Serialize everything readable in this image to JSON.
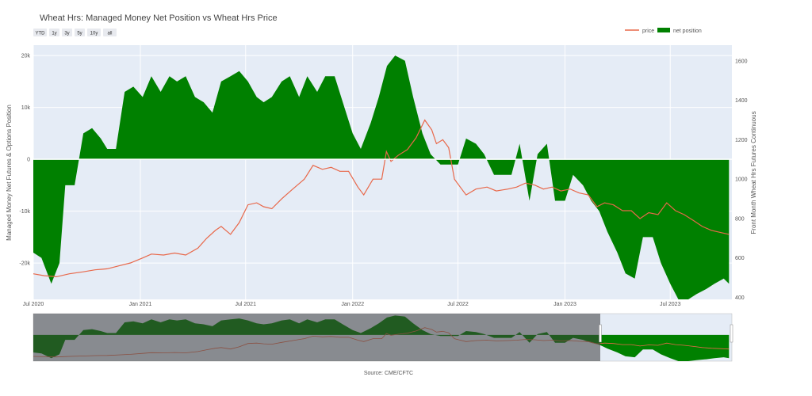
{
  "chart_data": {
    "type": "area",
    "title": "Wheat Hrs: Managed Money Net Position vs Wheat Hrs Price",
    "source": "Source: CME/CFTC",
    "range_buttons": [
      "YTD",
      "1y",
      "3y",
      "5y",
      "10y",
      "all"
    ],
    "xlim": [
      "2020-07-01",
      "2023-10-15"
    ],
    "x_ticks": [
      {
        "date": "2020-07-01",
        "label": "Jul 2020"
      },
      {
        "date": "2021-01-01",
        "label": "Jan 2021"
      },
      {
        "date": "2021-07-01",
        "label": "Jul 2021"
      },
      {
        "date": "2022-01-01",
        "label": "Jan 2022"
      },
      {
        "date": "2022-07-01",
        "label": "Jul 2022"
      },
      {
        "date": "2023-01-01",
        "label": "Jan 2023"
      },
      {
        "date": "2023-07-01",
        "label": "Jul 2023"
      }
    ],
    "y_left": {
      "title": "Managed Money Net Futures & Options Position",
      "range": [
        -27000,
        22000
      ],
      "ticks": [
        20000,
        10000,
        0,
        -10000,
        -20000
      ],
      "tick_labels": [
        "20k",
        "10k",
        "0",
        "-10k",
        "-20k"
      ]
    },
    "y_right": {
      "title": "Front Month Wheat Hrs Futures Continuous",
      "range": [
        390,
        1680
      ],
      "ticks": [
        1600,
        1400,
        1200,
        1000,
        800,
        600,
        400
      ],
      "tick_labels": [
        "1600",
        "1400",
        "1200",
        "1000",
        "800",
        "600",
        "400"
      ]
    },
    "legend_position": "top-right",
    "series": [
      {
        "name": "price",
        "color": "#e8684a",
        "axis": "right",
        "x": [
          "2020-07-01",
          "2020-07-20",
          "2020-08-10",
          "2020-09-01",
          "2020-09-25",
          "2020-10-15",
          "2020-11-05",
          "2020-11-25",
          "2020-12-15",
          "2021-01-05",
          "2021-01-20",
          "2021-02-10",
          "2021-03-01",
          "2021-03-20",
          "2021-04-10",
          "2021-04-25",
          "2021-05-10",
          "2021-05-20",
          "2021-06-05",
          "2021-06-20",
          "2021-07-05",
          "2021-07-20",
          "2021-08-01",
          "2021-08-15",
          "2021-09-01",
          "2021-09-20",
          "2021-10-10",
          "2021-10-25",
          "2021-11-10",
          "2021-11-25",
          "2021-12-10",
          "2021-12-25",
          "2022-01-10",
          "2022-01-20",
          "2022-02-05",
          "2022-02-20",
          "2022-02-28",
          "2022-03-08",
          "2022-03-20",
          "2022-04-05",
          "2022-04-20",
          "2022-05-05",
          "2022-05-17",
          "2022-05-25",
          "2022-06-05",
          "2022-06-15",
          "2022-06-25",
          "2022-07-05",
          "2022-07-15",
          "2022-08-01",
          "2022-08-20",
          "2022-09-05",
          "2022-09-25",
          "2022-10-10",
          "2022-10-25",
          "2022-11-10",
          "2022-11-25",
          "2022-12-10",
          "2022-12-25",
          "2023-01-10",
          "2023-01-25",
          "2023-02-10",
          "2023-02-25",
          "2023-03-10",
          "2023-03-25",
          "2023-04-10",
          "2023-04-25",
          "2023-05-10",
          "2023-05-25",
          "2023-06-10",
          "2023-06-25",
          "2023-07-10",
          "2023-07-25",
          "2023-08-10",
          "2023-08-25",
          "2023-09-10",
          "2023-09-25",
          "2023-10-10"
        ],
        "values": [
          520,
          510,
          505,
          520,
          530,
          540,
          545,
          560,
          575,
          600,
          620,
          615,
          625,
          615,
          650,
          700,
          740,
          760,
          720,
          780,
          870,
          880,
          860,
          850,
          900,
          950,
          1000,
          1070,
          1050,
          1060,
          1040,
          1040,
          960,
          920,
          1000,
          1000,
          1140,
          1090,
          1120,
          1150,
          1210,
          1300,
          1250,
          1180,
          1200,
          1160,
          1000,
          960,
          920,
          950,
          960,
          940,
          950,
          960,
          980,
          970,
          950,
          960,
          940,
          950,
          930,
          920,
          860,
          880,
          870,
          840,
          840,
          800,
          830,
          820,
          880,
          840,
          820,
          790,
          760,
          740,
          730,
          720
        ]
      },
      {
        "name": "net position",
        "color": "#008000",
        "axis": "left",
        "x": [
          "2020-07-01",
          "2020-07-15",
          "2020-08-01",
          "2020-08-15",
          "2020-08-25",
          "2020-09-10",
          "2020-09-25",
          "2020-10-10",
          "2020-10-25",
          "2020-11-05",
          "2020-11-20",
          "2020-12-05",
          "2020-12-20",
          "2021-01-05",
          "2021-01-20",
          "2021-02-05",
          "2021-02-20",
          "2021-03-05",
          "2021-03-20",
          "2021-04-05",
          "2021-04-20",
          "2021-05-05",
          "2021-05-20",
          "2021-06-05",
          "2021-06-20",
          "2021-07-05",
          "2021-07-20",
          "2021-08-01",
          "2021-08-15",
          "2021-09-01",
          "2021-09-15",
          "2021-10-01",
          "2021-10-15",
          "2021-11-01",
          "2021-11-15",
          "2021-12-01",
          "2021-12-15",
          "2022-01-01",
          "2022-01-15",
          "2022-02-01",
          "2022-02-15",
          "2022-03-01",
          "2022-03-15",
          "2022-04-01",
          "2022-04-15",
          "2022-05-01",
          "2022-05-15",
          "2022-06-01",
          "2022-06-15",
          "2022-07-01",
          "2022-07-15",
          "2022-08-01",
          "2022-08-15",
          "2022-09-01",
          "2022-09-15",
          "2022-10-01",
          "2022-10-15",
          "2022-11-01",
          "2022-11-15",
          "2022-12-01",
          "2022-12-15",
          "2023-01-01",
          "2023-01-15",
          "2023-02-01",
          "2023-02-15",
          "2023-03-01",
          "2023-03-15",
          "2023-04-01",
          "2023-04-15",
          "2023-05-01",
          "2023-05-15",
          "2023-06-01",
          "2023-06-15",
          "2023-07-01",
          "2023-07-15",
          "2023-08-01",
          "2023-08-15",
          "2023-09-01",
          "2023-09-15",
          "2023-10-01",
          "2023-10-10"
        ],
        "values": [
          -18000,
          -19000,
          -24000,
          -20000,
          -5000,
          -5000,
          5000,
          6000,
          4000,
          2000,
          2000,
          13000,
          14000,
          12000,
          16000,
          13000,
          16000,
          15000,
          16000,
          12000,
          11000,
          9000,
          15000,
          16000,
          17000,
          15000,
          12000,
          11000,
          12000,
          15000,
          16000,
          12000,
          16000,
          13000,
          16000,
          16000,
          11000,
          5000,
          2000,
          7000,
          12000,
          18000,
          20000,
          19000,
          12000,
          5000,
          1000,
          -1000,
          -1000,
          -1000,
          4000,
          3000,
          1000,
          -3000,
          -3000,
          -3000,
          3000,
          -8000,
          1000,
          3000,
          -8000,
          -8000,
          -3000,
          -5000,
          -8000,
          -10000,
          -14000,
          -18000,
          -22000,
          -23000,
          -15000,
          -15000,
          -20000,
          -24000,
          -27000,
          -27000,
          -26000,
          -25000,
          -24000,
          -23000,
          -24000
        ]
      }
    ]
  }
}
